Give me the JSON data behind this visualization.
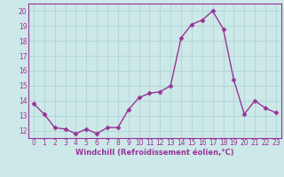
{
  "x": [
    0,
    1,
    2,
    3,
    4,
    5,
    6,
    7,
    8,
    9,
    10,
    11,
    12,
    13,
    14,
    15,
    16,
    17,
    18,
    19,
    20,
    21,
    22,
    23
  ],
  "y": [
    13.8,
    13.1,
    12.2,
    12.1,
    11.8,
    12.1,
    11.8,
    12.2,
    12.2,
    13.4,
    14.2,
    14.5,
    14.6,
    15.0,
    18.2,
    19.1,
    19.4,
    20.0,
    18.8,
    15.4,
    13.1,
    14.0,
    13.5,
    13.2
  ],
  "line_color": "#993399",
  "marker": "D",
  "marker_size": 2.5,
  "line_width": 1.0,
  "bg_color": "#cce8e8",
  "grid_color": "#b0d4d4",
  "xlabel": "Windchill (Refroidissement éolien,°C)",
  "xlabel_color": "#993399",
  "tick_color": "#993399",
  "ylim": [
    11.5,
    20.5
  ],
  "yticks": [
    12,
    13,
    14,
    15,
    16,
    17,
    18,
    19,
    20
  ],
  "xlim": [
    -0.5,
    23.5
  ],
  "xticks": [
    0,
    1,
    2,
    3,
    4,
    5,
    6,
    7,
    8,
    9,
    10,
    11,
    12,
    13,
    14,
    15,
    16,
    17,
    18,
    19,
    20,
    21,
    22,
    23
  ],
  "tick_fontsize": 5.5,
  "xlabel_fontsize": 6.0
}
